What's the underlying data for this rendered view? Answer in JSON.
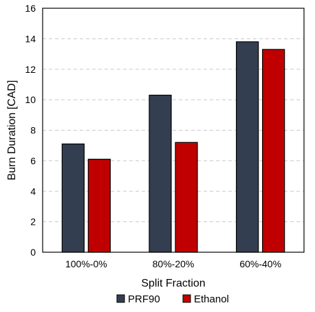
{
  "chart_data": {
    "type": "bar",
    "title": "",
    "xlabel": "Split Fraction",
    "ylabel": "Burn Duration [CAD]",
    "categories": [
      "100%-0%",
      "80%-20%",
      "60%-40%"
    ],
    "series": [
      {
        "name": "PRF90",
        "values": [
          7.1,
          10.3,
          13.8
        ],
        "color": "#333f50"
      },
      {
        "name": "Ethanol",
        "values": [
          6.1,
          7.2,
          13.3
        ],
        "color": "#c00000"
      }
    ],
    "ylim": [
      0,
      16
    ],
    "yticks": [
      0,
      2,
      4,
      6,
      8,
      10,
      12,
      14,
      16
    ],
    "grid": "horizontal dashed",
    "legend_position": "bottom"
  }
}
